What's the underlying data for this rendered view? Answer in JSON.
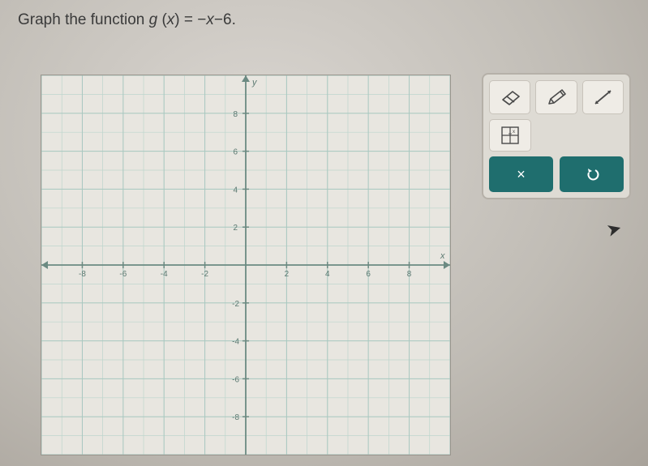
{
  "question": {
    "prefix": "Graph the function ",
    "fn_name": "g",
    "fn_arg": "x",
    "equals": "=",
    "rhs": "−x−6",
    "period": "."
  },
  "graph": {
    "xlim": [
      -10,
      10
    ],
    "ylim": [
      -10,
      10
    ],
    "tick_step": 2,
    "axis_labels_y": [
      2,
      4,
      6,
      8
    ],
    "axis_labels_y_neg": [
      -2,
      -4,
      -6,
      -8
    ],
    "axis_labels_x": [
      -8,
      -6,
      -4,
      -2,
      2,
      4,
      6,
      8
    ],
    "x_label": "x",
    "y_label": "y",
    "bg_color": "#e8e6e0",
    "grid_color": "#a9c8c0",
    "grid_minor_color": "#bdd5cd",
    "axis_color": "#6b8a82",
    "tick_label_color": "#5a7870",
    "tick_fontsize": 10
  },
  "toolbox": {
    "tools": [
      {
        "name": "eraser-icon"
      },
      {
        "name": "pencil-icon"
      },
      {
        "name": "line-icon"
      }
    ],
    "secondary": [
      {
        "name": "grid-tool-icon"
      }
    ],
    "actions": {
      "clear": {
        "label": "×",
        "bg": "#1f6e6e"
      },
      "undo": {
        "label": "↺",
        "bg": "#1f6e6e"
      }
    },
    "icon_color": "#4a4a4a"
  }
}
